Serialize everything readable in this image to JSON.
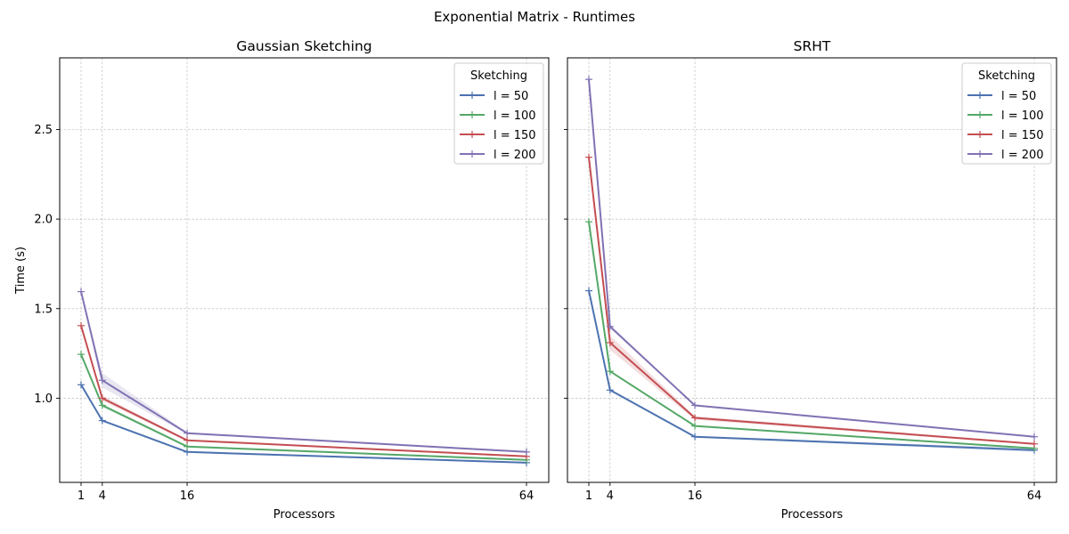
{
  "figure": {
    "title": "Exponential Matrix - Runtimes"
  },
  "chart_data": [
    {
      "type": "line",
      "title": "Gaussian Sketching",
      "xlabel": "Processors",
      "ylabel": "Time (s)",
      "x": [
        1,
        4,
        16,
        64
      ],
      "xticks": [
        "1",
        "4",
        "16",
        "64"
      ],
      "yticks": [
        "1.0",
        "1.5",
        "2.0",
        "2.5"
      ],
      "ylim": [
        0.53,
        2.9
      ],
      "grid": true,
      "legend": {
        "title": "Sketching",
        "position": "top-right"
      },
      "series": [
        {
          "name": "l = 50",
          "color": "#4c72b0",
          "values": [
            1.075,
            0.875,
            0.7,
            0.64
          ],
          "band": [
            0.005,
            0.005,
            0.005,
            0.005
          ]
        },
        {
          "name": "l = 100",
          "color": "#55a868",
          "values": [
            1.245,
            0.96,
            0.73,
            0.655
          ],
          "band": [
            0.005,
            0.01,
            0.005,
            0.005
          ]
        },
        {
          "name": "l = 150",
          "color": "#c44e52",
          "values": [
            1.405,
            1.0,
            0.765,
            0.675
          ],
          "band": [
            0.005,
            0.015,
            0.005,
            0.005
          ]
        },
        {
          "name": "l = 200",
          "color": "#8172b3",
          "values": [
            1.595,
            1.1,
            0.805,
            0.7
          ],
          "band": [
            0.005,
            0.04,
            0.005,
            0.005
          ]
        }
      ]
    },
    {
      "type": "line",
      "title": "SRHT",
      "xlabel": "Processors",
      "ylabel": "",
      "x": [
        1,
        4,
        16,
        64
      ],
      "xticks": [
        "1",
        "4",
        "16",
        "64"
      ],
      "yticks": [],
      "ylim": [
        0.53,
        2.9
      ],
      "grid": true,
      "legend": {
        "title": "Sketching",
        "position": "top-right"
      },
      "series": [
        {
          "name": "l = 50",
          "color": "#4c72b0",
          "values": [
            1.6,
            1.045,
            0.785,
            0.71
          ],
          "band": [
            0.005,
            0.005,
            0.005,
            0.01
          ]
        },
        {
          "name": "l = 100",
          "color": "#55a868",
          "values": [
            1.985,
            1.15,
            0.845,
            0.72
          ],
          "band": [
            0.005,
            0.005,
            0.005,
            0.005
          ]
        },
        {
          "name": "l = 150",
          "color": "#c44e52",
          "values": [
            2.345,
            1.31,
            0.89,
            0.745
          ],
          "band": [
            0.005,
            0.04,
            0.01,
            0.005
          ]
        },
        {
          "name": "l = 200",
          "color": "#8172b3",
          "values": [
            2.78,
            1.4,
            0.96,
            0.785
          ],
          "band": [
            0.005,
            0.01,
            0.005,
            0.005
          ]
        }
      ]
    }
  ]
}
